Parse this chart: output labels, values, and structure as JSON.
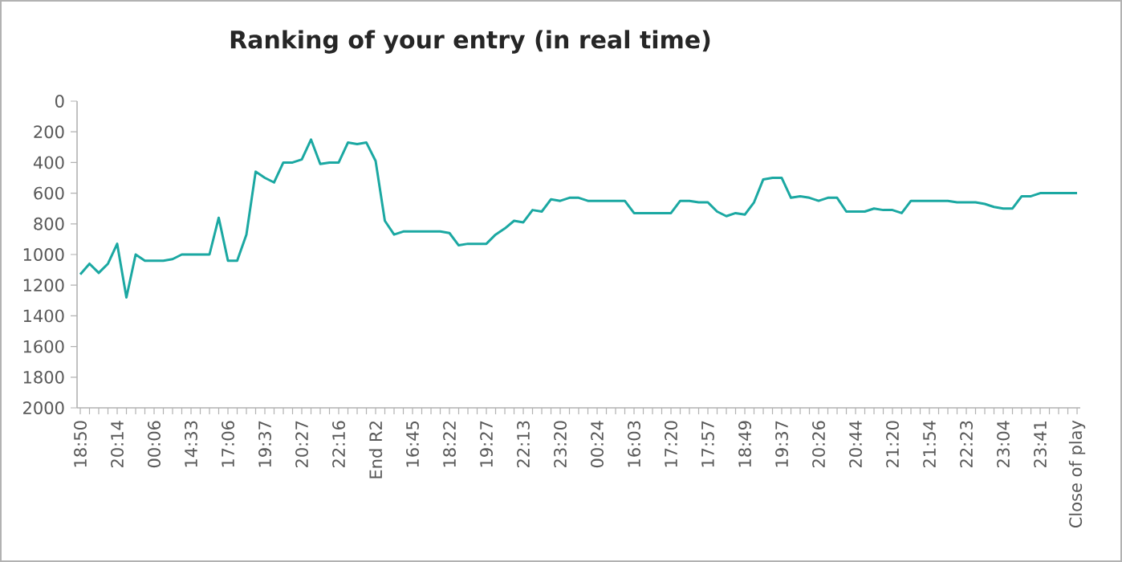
{
  "chart_data": {
    "type": "line",
    "title": "Ranking of your entry (in real time)",
    "categories": [
      "18:50",
      null,
      null,
      null,
      "20:14",
      null,
      null,
      null,
      "00:06",
      null,
      null,
      null,
      "14:33",
      null,
      null,
      null,
      "17:06",
      null,
      null,
      null,
      "19:37",
      null,
      null,
      null,
      "20:27",
      null,
      null,
      null,
      "22:16",
      null,
      null,
      null,
      "End R2",
      null,
      null,
      null,
      "16:45",
      null,
      null,
      null,
      "18:22",
      null,
      null,
      null,
      "19:27",
      null,
      null,
      null,
      "22:13",
      null,
      null,
      null,
      "23:20",
      null,
      null,
      null,
      "00:24",
      null,
      null,
      null,
      "16:03",
      null,
      null,
      null,
      "17:20",
      null,
      null,
      null,
      "17:57",
      null,
      null,
      null,
      "18:49",
      null,
      null,
      null,
      "19:37",
      null,
      null,
      null,
      "20:26",
      null,
      null,
      null,
      "20:44",
      null,
      null,
      null,
      "21:20",
      null,
      null,
      null,
      "21:54",
      null,
      null,
      null,
      "22:23",
      null,
      null,
      null,
      "23:04",
      null,
      null,
      null,
      "23:41",
      null,
      null,
      null,
      "Close of play"
    ],
    "values": [
      1130,
      1060,
      1120,
      1060,
      930,
      1280,
      1000,
      1040,
      1040,
      1040,
      1030,
      1000,
      1000,
      1000,
      1000,
      760,
      1040,
      1040,
      870,
      460,
      500,
      530,
      400,
      400,
      380,
      250,
      410,
      400,
      400,
      270,
      280,
      270,
      390,
      780,
      870,
      850,
      850,
      850,
      850,
      850,
      860,
      940,
      930,
      930,
      930,
      870,
      830,
      780,
      790,
      710,
      720,
      640,
      650,
      630,
      630,
      650,
      650,
      650,
      650,
      650,
      730,
      730,
      730,
      730,
      730,
      650,
      650,
      660,
      660,
      720,
      750,
      730,
      740,
      660,
      510,
      500,
      500,
      630,
      620,
      630,
      650,
      630,
      630,
      720,
      720,
      720,
      700,
      710,
      710,
      730,
      650,
      650,
      650,
      650,
      650,
      660,
      660,
      660,
      670,
      690,
      700,
      700,
      620,
      620,
      600,
      600,
      600,
      600,
      600
    ],
    "color": "#1ba8a2",
    "ylim": [
      2000,
      0
    ],
    "yticks": [
      0,
      200,
      400,
      600,
      800,
      1000,
      1200,
      1400,
      1600,
      1800,
      2000
    ]
  }
}
